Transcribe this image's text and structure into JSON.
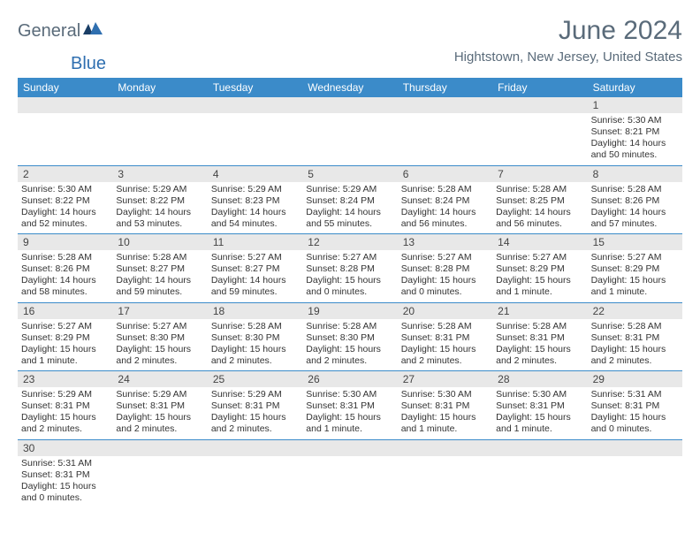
{
  "logo": {
    "text1": "General",
    "text2": "Blue"
  },
  "title": "June 2024",
  "location": "Hightstown, New Jersey, United States",
  "colors": {
    "header_bg": "#3b8bc9",
    "header_text": "#ffffff",
    "daynum_bg": "#e8e8e8",
    "text": "#333333",
    "title": "#5a6b7a"
  },
  "day_headers": [
    "Sunday",
    "Monday",
    "Tuesday",
    "Wednesday",
    "Thursday",
    "Friday",
    "Saturday"
  ],
  "weeks": [
    {
      "nums": [
        "",
        "",
        "",
        "",
        "",
        "",
        "1"
      ],
      "info": [
        "",
        "",
        "",
        "",
        "",
        "",
        "Sunrise: 5:30 AM\nSunset: 8:21 PM\nDaylight: 14 hours and 50 minutes."
      ]
    },
    {
      "nums": [
        "2",
        "3",
        "4",
        "5",
        "6",
        "7",
        "8"
      ],
      "info": [
        "Sunrise: 5:30 AM\nSunset: 8:22 PM\nDaylight: 14 hours and 52 minutes.",
        "Sunrise: 5:29 AM\nSunset: 8:22 PM\nDaylight: 14 hours and 53 minutes.",
        "Sunrise: 5:29 AM\nSunset: 8:23 PM\nDaylight: 14 hours and 54 minutes.",
        "Sunrise: 5:29 AM\nSunset: 8:24 PM\nDaylight: 14 hours and 55 minutes.",
        "Sunrise: 5:28 AM\nSunset: 8:24 PM\nDaylight: 14 hours and 56 minutes.",
        "Sunrise: 5:28 AM\nSunset: 8:25 PM\nDaylight: 14 hours and 56 minutes.",
        "Sunrise: 5:28 AM\nSunset: 8:26 PM\nDaylight: 14 hours and 57 minutes."
      ]
    },
    {
      "nums": [
        "9",
        "10",
        "11",
        "12",
        "13",
        "14",
        "15"
      ],
      "info": [
        "Sunrise: 5:28 AM\nSunset: 8:26 PM\nDaylight: 14 hours and 58 minutes.",
        "Sunrise: 5:28 AM\nSunset: 8:27 PM\nDaylight: 14 hours and 59 minutes.",
        "Sunrise: 5:27 AM\nSunset: 8:27 PM\nDaylight: 14 hours and 59 minutes.",
        "Sunrise: 5:27 AM\nSunset: 8:28 PM\nDaylight: 15 hours and 0 minutes.",
        "Sunrise: 5:27 AM\nSunset: 8:28 PM\nDaylight: 15 hours and 0 minutes.",
        "Sunrise: 5:27 AM\nSunset: 8:29 PM\nDaylight: 15 hours and 1 minute.",
        "Sunrise: 5:27 AM\nSunset: 8:29 PM\nDaylight: 15 hours and 1 minute."
      ]
    },
    {
      "nums": [
        "16",
        "17",
        "18",
        "19",
        "20",
        "21",
        "22"
      ],
      "info": [
        "Sunrise: 5:27 AM\nSunset: 8:29 PM\nDaylight: 15 hours and 1 minute.",
        "Sunrise: 5:27 AM\nSunset: 8:30 PM\nDaylight: 15 hours and 2 minutes.",
        "Sunrise: 5:28 AM\nSunset: 8:30 PM\nDaylight: 15 hours and 2 minutes.",
        "Sunrise: 5:28 AM\nSunset: 8:30 PM\nDaylight: 15 hours and 2 minutes.",
        "Sunrise: 5:28 AM\nSunset: 8:31 PM\nDaylight: 15 hours and 2 minutes.",
        "Sunrise: 5:28 AM\nSunset: 8:31 PM\nDaylight: 15 hours and 2 minutes.",
        "Sunrise: 5:28 AM\nSunset: 8:31 PM\nDaylight: 15 hours and 2 minutes."
      ]
    },
    {
      "nums": [
        "23",
        "24",
        "25",
        "26",
        "27",
        "28",
        "29"
      ],
      "info": [
        "Sunrise: 5:29 AM\nSunset: 8:31 PM\nDaylight: 15 hours and 2 minutes.",
        "Sunrise: 5:29 AM\nSunset: 8:31 PM\nDaylight: 15 hours and 2 minutes.",
        "Sunrise: 5:29 AM\nSunset: 8:31 PM\nDaylight: 15 hours and 2 minutes.",
        "Sunrise: 5:30 AM\nSunset: 8:31 PM\nDaylight: 15 hours and 1 minute.",
        "Sunrise: 5:30 AM\nSunset: 8:31 PM\nDaylight: 15 hours and 1 minute.",
        "Sunrise: 5:30 AM\nSunset: 8:31 PM\nDaylight: 15 hours and 1 minute.",
        "Sunrise: 5:31 AM\nSunset: 8:31 PM\nDaylight: 15 hours and 0 minutes."
      ]
    },
    {
      "nums": [
        "30",
        "",
        "",
        "",
        "",
        "",
        ""
      ],
      "info": [
        "Sunrise: 5:31 AM\nSunset: 8:31 PM\nDaylight: 15 hours and 0 minutes.",
        "",
        "",
        "",
        "",
        "",
        ""
      ]
    }
  ]
}
